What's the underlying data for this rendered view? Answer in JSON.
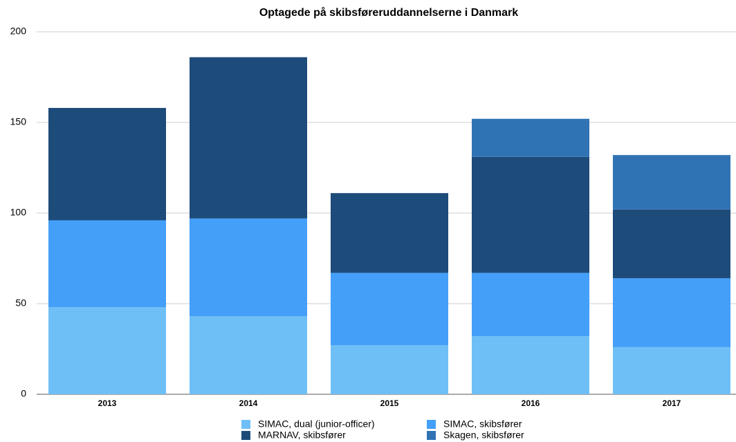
{
  "chart_data": {
    "type": "stacked_bar",
    "title": "Optagede på skibsføreruddannelserne i Danmark",
    "categories": [
      "2013",
      "2014",
      "2015",
      "2016",
      "2017"
    ],
    "series": [
      {
        "name": "SIMAC, dual (junior-officer)",
        "color": "#6fbff7",
        "values": [
          48,
          43,
          27,
          32,
          26
        ]
      },
      {
        "name": "SIMAC, skibsfører",
        "color": "#449ff8",
        "values": [
          48,
          54,
          40,
          35,
          38
        ]
      },
      {
        "name": "MARNAV, skibsfører",
        "color": "#1d4b7a",
        "values": [
          62,
          89,
          44,
          64,
          38
        ]
      },
      {
        "name": "Skagen, skibsfører",
        "color": "#3073b5",
        "values": [
          0,
          0,
          0,
          21,
          30
        ]
      }
    ],
    "ylim": [
      0,
      200
    ],
    "yticks": [
      0,
      50,
      100,
      150,
      200
    ],
    "grid": true
  }
}
